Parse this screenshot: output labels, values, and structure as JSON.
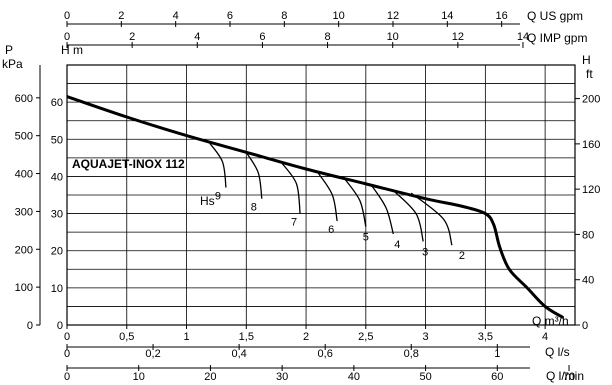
{
  "chart_data": {
    "type": "line",
    "title": "AQUAJET-INOX 112",
    "x_axis": {
      "label": "Q m³/h",
      "range": [
        0,
        4.25
      ],
      "ticks": [
        "0",
        "0,5",
        "1",
        "1,5",
        "2",
        "2,5",
        "3",
        "3,5",
        "4"
      ]
    },
    "secondary_x_axes": [
      {
        "label": "Q l/s",
        "ticks": [
          "0",
          "0,2",
          "0,4",
          "0,6",
          "0,8",
          "1"
        ],
        "values": [
          0,
          0.2,
          0.4,
          0.6,
          0.8,
          1.0
        ]
      },
      {
        "label": "Q l/min",
        "ticks": [
          "0",
          "10",
          "20",
          "30",
          "40",
          "50",
          "60",
          "70"
        ],
        "values": [
          0,
          10,
          20,
          30,
          40,
          50,
          60,
          70
        ]
      },
      {
        "label": "Q US gpm",
        "ticks": [
          "0",
          "2",
          "4",
          "6",
          "8",
          "10",
          "12",
          "14",
          "16"
        ],
        "values": [
          0,
          2,
          4,
          6,
          8,
          10,
          12,
          14,
          16
        ]
      },
      {
        "label": "Q IMP gpm",
        "ticks": [
          "0",
          "2",
          "4",
          "6",
          "8",
          "10",
          "12",
          "14"
        ],
        "values": [
          0,
          2,
          4,
          6,
          8,
          10,
          12,
          14
        ]
      }
    ],
    "y_axis": {
      "label": "H m",
      "range": [
        0,
        70
      ],
      "ticks": [
        "0",
        "10",
        "20",
        "30",
        "40",
        "50",
        "60"
      ]
    },
    "y_left_outer": {
      "label_top": "P",
      "label_bottom": "kPa",
      "ticks": [
        "0",
        "100",
        "200",
        "300",
        "400",
        "500",
        "600"
      ],
      "values": [
        0,
        100,
        200,
        300,
        400,
        500,
        600
      ]
    },
    "y_right": {
      "label_top": "H",
      "label_bottom": "ft",
      "ticks": [
        "0",
        "40",
        "80",
        "120",
        "160",
        "200"
      ],
      "values": [
        0,
        40,
        80,
        120,
        160,
        200
      ]
    },
    "series": [
      {
        "x": [
          0,
          0.5,
          1.0,
          1.5,
          2.0,
          2.5,
          3.0,
          3.3,
          3.5,
          3.57,
          3.62,
          3.7,
          3.85,
          4.0,
          4.15
        ],
        "y": [
          61.5,
          56,
          51,
          46.5,
          42,
          38,
          34,
          32,
          30,
          27,
          21,
          15,
          10,
          5,
          2
        ]
      }
    ],
    "hs_label": "Hs",
    "hs_curves": [
      {
        "label": "9",
        "x": [
          1.18,
          1.3,
          1.33
        ],
        "y": [
          49.5,
          44,
          37
        ]
      },
      {
        "label": "8",
        "x": [
          1.5,
          1.6,
          1.63
        ],
        "y": [
          46.5,
          41,
          34
        ]
      },
      {
        "label": "7",
        "x": [
          1.8,
          1.92,
          1.95
        ],
        "y": [
          43.5,
          38,
          30
        ]
      },
      {
        "label": "6",
        "x": [
          2.1,
          2.22,
          2.26
        ],
        "y": [
          41,
          35,
          28
        ]
      },
      {
        "label": "5",
        "x": [
          2.32,
          2.45,
          2.5
        ],
        "y": [
          39.5,
          33.5,
          26.5
        ]
      },
      {
        "label": "4",
        "x": [
          2.55,
          2.67,
          2.73
        ],
        "y": [
          37.5,
          31.5,
          24.5
        ]
      },
      {
        "label": "3",
        "x": [
          2.72,
          2.92,
          2.98
        ],
        "y": [
          36.5,
          30,
          22.5
        ]
      },
      {
        "label": "2",
        "x": [
          2.88,
          3.15,
          3.22
        ],
        "y": [
          35.5,
          28.5,
          21.5
        ]
      }
    ]
  }
}
